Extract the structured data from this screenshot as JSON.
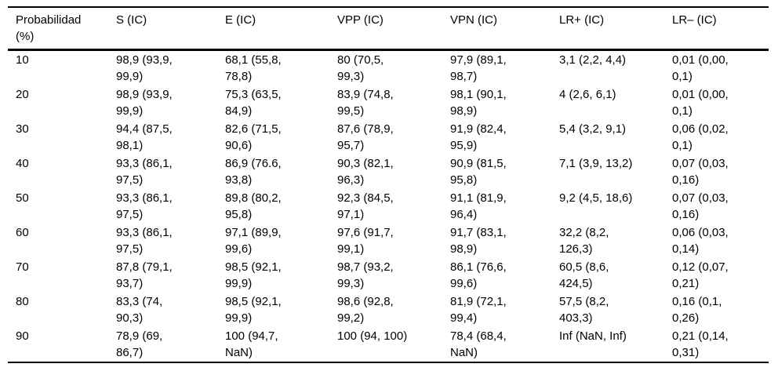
{
  "colors": {
    "text": "#000000",
    "border": "#000000",
    "background": "#ffffff"
  },
  "table": {
    "columns": [
      "Probabilidad\n(%)",
      "S (IC)",
      "E (IC)",
      "VPP (IC)",
      "VPN (IC)",
      "LR+ (IC)",
      "LR– (IC)"
    ],
    "rows": [
      [
        "10",
        "98,9 (93,9,\n99,9)",
        "68,1 (55,8,\n78,8)",
        "80 (70,5,\n99,3)",
        "97,9 (89,1,\n98,7)",
        "3,1 (2,2, 4,4)",
        "0,01 (0,00,\n0,1)"
      ],
      [
        "20",
        "98,9 (93,9,\n99,9)",
        "75,3 (63,5,\n84,9)",
        "83,9 (74,8,\n99,5)",
        "98,1 (90,1,\n98,9)",
        "4 (2,6, 6,1)",
        "0,01 (0,00,\n0,1)"
      ],
      [
        "30",
        "94,4 (87,5,\n98,1)",
        "82,6 (71,5,\n90,6)",
        "87,6 (78,9,\n95,7)",
        "91,9 (82,4,\n95,9)",
        "5,4 (3,2, 9,1)",
        "0,06 (0,02,\n0,1)"
      ],
      [
        "40",
        "93,3 (86,1,\n97,5)",
        "86,9 (76.6,\n93,8)",
        "90,3 (82,1,\n96,3)",
        "90,9 (81,5,\n95,8)",
        "7,1 (3,9, 13,2)",
        "0,07 (0,03,\n0,16)"
      ],
      [
        "50",
        "93,3 (86,1,\n97,5)",
        "89,8 (80,2,\n95,8)",
        "92,3 (84,5,\n97,1)",
        "91,1 (81,9,\n96,4)",
        "9,2 (4,5, 18,6)",
        "0,07 (0,03,\n0,16)"
      ],
      [
        "60",
        "93,3 (86,1,\n97,5)",
        "97,1 (89,9,\n99,6)",
        "97,6 (91,7,\n99,1)",
        "91,7 (83,1,\n98,9)",
        "32,2 (8,2,\n126,3)",
        "0,06 (0,03,\n0,14)"
      ],
      [
        "70",
        "87,8 (79,1,\n93,7)",
        "98,5 (92,1,\n99,9)",
        "98,7 (93,2,\n99,3)",
        "86,1 (76,6,\n99,6)",
        "60,5 (8,6,\n424,5)",
        "0,12 (0,07,\n0,21)"
      ],
      [
        "80",
        "83,3 (74,\n90,3)",
        "98,5 (92,1,\n99,9)",
        "98,6 (92,8,\n99,2)",
        "81,9 (72,1,\n99,4)",
        "57,5 (8,2,\n403,3)",
        "0,16 (0,1,\n0,26)"
      ],
      [
        "90",
        "78,9 (69,\n86,7)",
        "100 (94,7,\nNaN)",
        "100 (94, 100)",
        "78,4 (68,4,\nNaN)",
        "Inf (NaN, Inf)",
        "0,21 (0,14,\n0,31)"
      ]
    ]
  }
}
